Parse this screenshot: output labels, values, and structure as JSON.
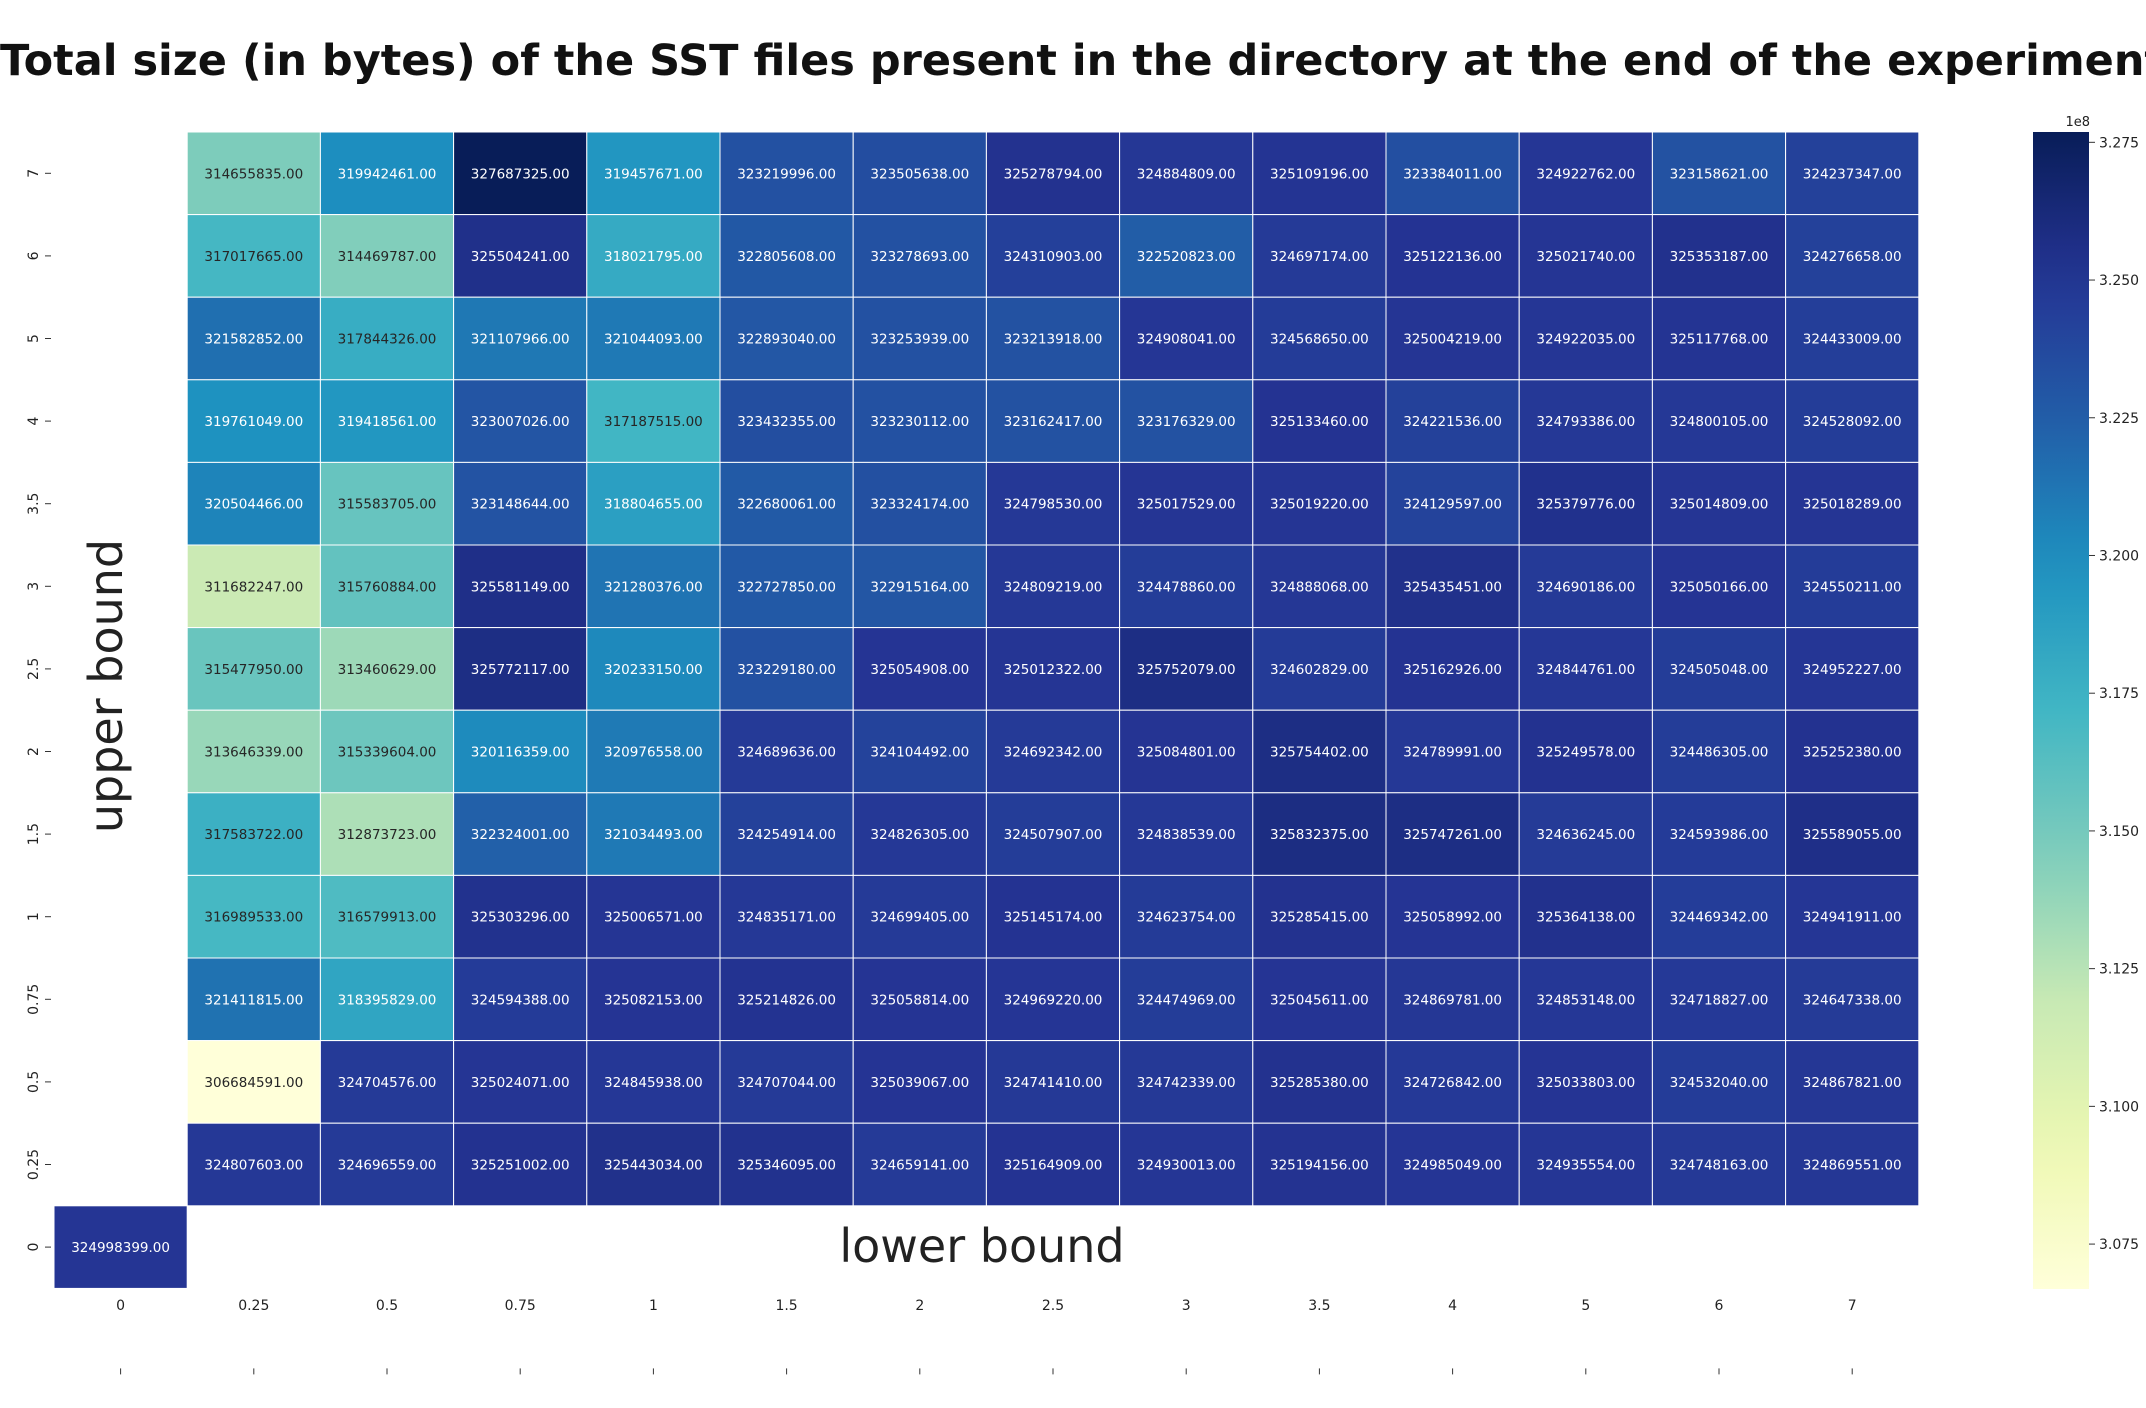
{
  "chart_data": {
    "type": "heatmap",
    "title": "Total size (in bytes) of the SST files present in the directory at the end of the experiment",
    "xlabel": "lower bound",
    "ylabel": "upper bound",
    "x_categories": [
      "0",
      "0.25",
      "0.5",
      "0.75",
      "1",
      "1.5",
      "2",
      "2.5",
      "3",
      "3.5",
      "4",
      "5",
      "6",
      "7"
    ],
    "y_categories": [
      "7",
      "6",
      "5",
      "4",
      "3.5",
      "3",
      "2.5",
      "2",
      "1.5",
      "1",
      "0.75",
      "0.5",
      "0.25",
      "0"
    ],
    "values": [
      [
        null,
        314655835.0,
        319942461.0,
        327687325.0,
        319457671.0,
        323219996.0,
        323505638.0,
        325278794.0,
        324884809.0,
        325109196.0,
        323384011.0,
        324922762.0,
        323158621.0,
        324237347.0
      ],
      [
        null,
        317017665.0,
        314469787.0,
        325504241.0,
        318021795.0,
        322805608.0,
        323278693.0,
        324310903.0,
        322520823.0,
        324697174.0,
        325122136.0,
        325021740.0,
        325353187.0,
        324276658.0
      ],
      [
        null,
        321582852.0,
        317844326.0,
        321107966.0,
        321044093.0,
        322893040.0,
        323253939.0,
        323213918.0,
        324908041.0,
        324568650.0,
        325004219.0,
        324922035.0,
        325117768.0,
        324433009.0
      ],
      [
        null,
        319761049.0,
        319418561.0,
        323007026.0,
        317187515.0,
        323432355.0,
        323230112.0,
        323162417.0,
        323176329.0,
        325133460.0,
        324221536.0,
        324793386.0,
        324800105.0,
        324528092.0
      ],
      [
        null,
        320504466.0,
        315583705.0,
        323148644.0,
        318804655.0,
        322680061.0,
        323324174.0,
        324798530.0,
        325017529.0,
        325019220.0,
        324129597.0,
        325379776.0,
        325014809.0,
        325018289.0
      ],
      [
        null,
        311682247.0,
        315760884.0,
        325581149.0,
        321280376.0,
        322727850.0,
        322915164.0,
        324809219.0,
        324478860.0,
        324888068.0,
        325435451.0,
        324690186.0,
        325050166.0,
        324550211.0
      ],
      [
        null,
        315477950.0,
        313460629.0,
        325772117.0,
        320233150.0,
        323229180.0,
        325054908.0,
        325012322.0,
        325752079.0,
        324602829.0,
        325162926.0,
        324844761.0,
        324505048.0,
        324952227.0
      ],
      [
        null,
        313646339.0,
        315339604.0,
        320116359.0,
        320976558.0,
        324689636.0,
        324104492.0,
        324692342.0,
        325084801.0,
        325754402.0,
        324789991.0,
        325249578.0,
        324486305.0,
        325252380.0
      ],
      [
        null,
        317583722.0,
        312873723.0,
        322324001.0,
        321034493.0,
        324254914.0,
        324826305.0,
        324507907.0,
        324838539.0,
        325832375.0,
        325747261.0,
        324636245.0,
        324593986.0,
        325589055.0
      ],
      [
        null,
        316989533.0,
        316579913.0,
        325303296.0,
        325006571.0,
        324835171.0,
        324699405.0,
        325145174.0,
        324623754.0,
        325285415.0,
        325058992.0,
        325364138.0,
        324469342.0,
        324941911.0
      ],
      [
        null,
        321411815.0,
        318395829.0,
        324594388.0,
        325082153.0,
        325214826.0,
        325058814.0,
        324969220.0,
        324474969.0,
        325045611.0,
        324869781.0,
        324853148.0,
        324718827.0,
        324647338.0
      ],
      [
        null,
        306684591.0,
        324704576.0,
        325024071.0,
        324845938.0,
        324707044.0,
        325039067.0,
        324741410.0,
        324742339.0,
        325285380.0,
        324726842.0,
        325033803.0,
        324532040.0,
        324867821.0
      ],
      [
        null,
        324807603.0,
        324696559.0,
        325251002.0,
        325443034.0,
        325346095.0,
        324659141.0,
        325164909.0,
        324930013.0,
        325194156.0,
        324985049.0,
        324935554.0,
        324748163.0,
        324869551.0
      ],
      [
        324998399.0,
        null,
        null,
        null,
        null,
        null,
        null,
        null,
        null,
        null,
        null,
        null,
        null,
        null
      ]
    ],
    "colorbar": {
      "colormap": "YlGnBu",
      "vmin": 306684591.0,
      "vmax": 327687325.0,
      "offset_label": "1e8",
      "ticks": [
        "3.075",
        "3.100",
        "3.125",
        "3.150",
        "3.175",
        "3.200",
        "3.225",
        "3.250",
        "3.275"
      ]
    },
    "value_format": "2 decimals"
  }
}
